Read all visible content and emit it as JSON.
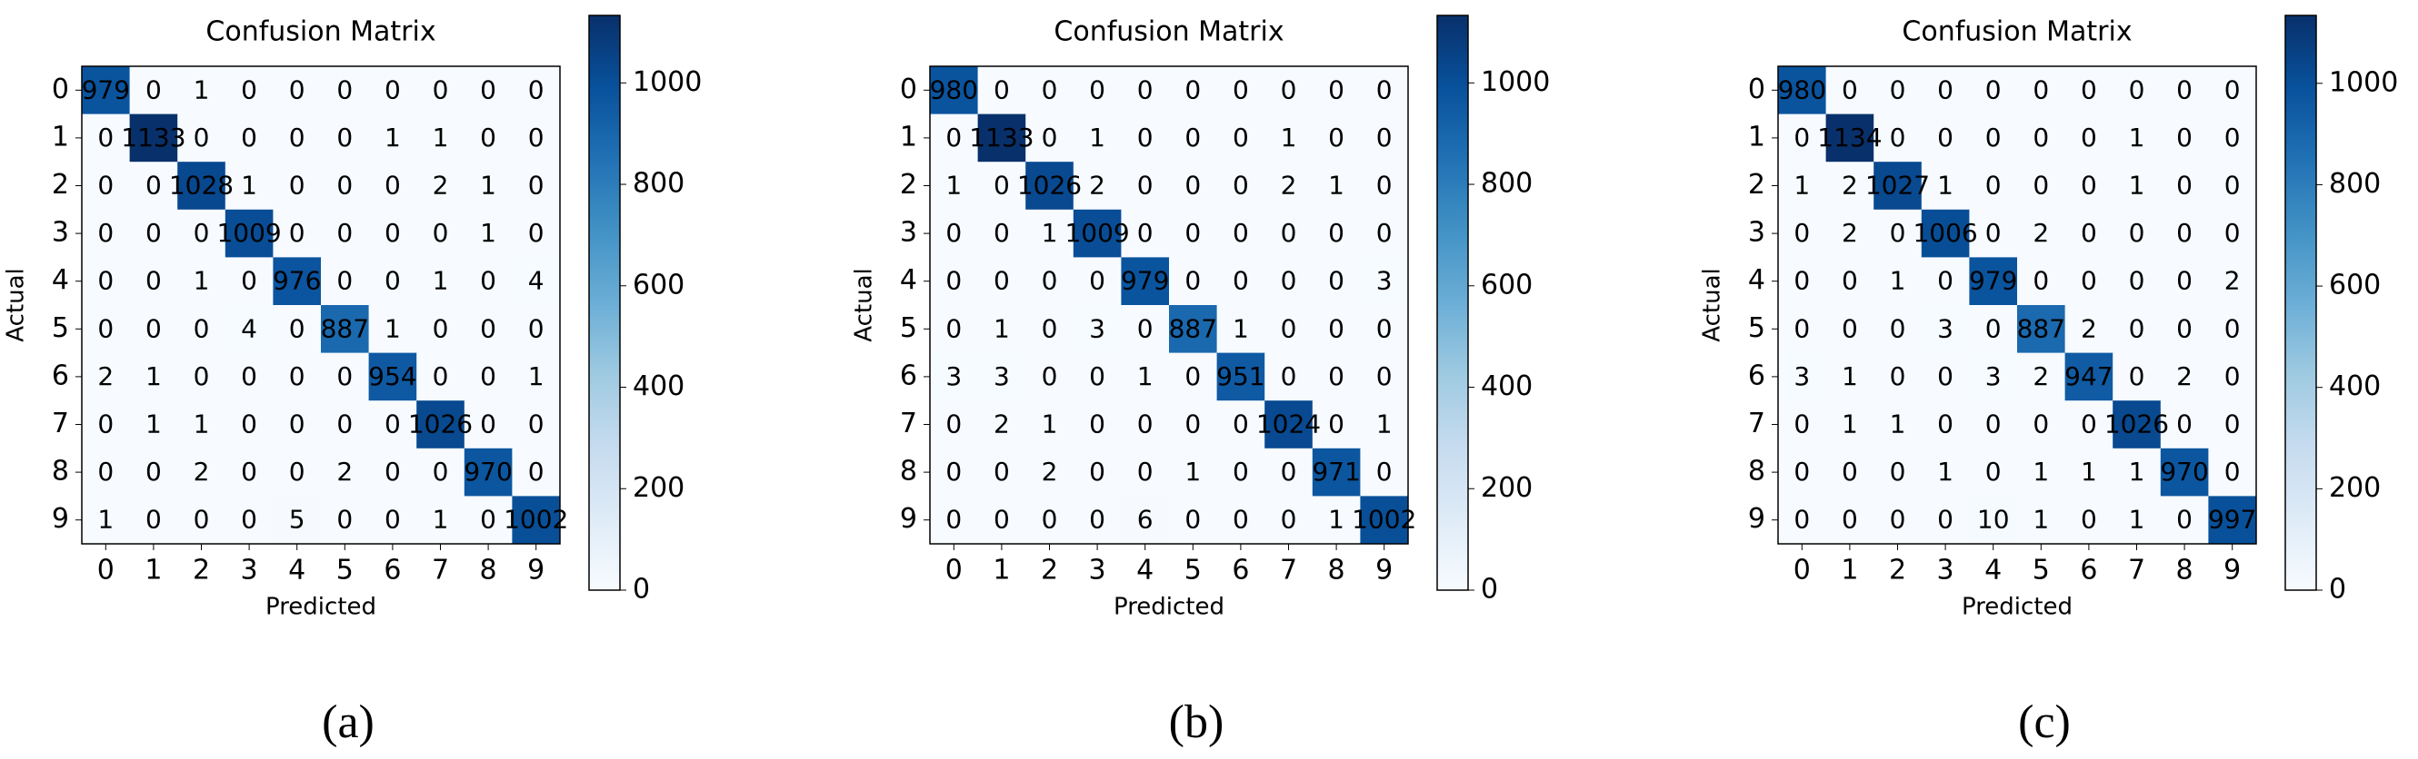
{
  "chart_data": [
    {
      "type": "heatmap",
      "title": "Confusion Matrix",
      "xlabel": "Predicted",
      "ylabel": "Actual",
      "panel_label": "(a)",
      "x_categories": [
        "0",
        "1",
        "2",
        "3",
        "4",
        "5",
        "6",
        "7",
        "8",
        "9"
      ],
      "y_categories": [
        "0",
        "1",
        "2",
        "3",
        "4",
        "5",
        "6",
        "7",
        "8",
        "9"
      ],
      "values": [
        [
          979,
          0,
          1,
          0,
          0,
          0,
          0,
          0,
          0,
          0
        ],
        [
          0,
          1133,
          0,
          0,
          0,
          0,
          1,
          1,
          0,
          0
        ],
        [
          0,
          0,
          1028,
          1,
          0,
          0,
          0,
          2,
          1,
          0
        ],
        [
          0,
          0,
          0,
          1009,
          0,
          0,
          0,
          0,
          1,
          0
        ],
        [
          0,
          0,
          1,
          0,
          976,
          0,
          0,
          1,
          0,
          4
        ],
        [
          0,
          0,
          0,
          4,
          0,
          887,
          1,
          0,
          0,
          0
        ],
        [
          2,
          1,
          0,
          0,
          0,
          0,
          954,
          0,
          0,
          1
        ],
        [
          0,
          1,
          1,
          0,
          0,
          0,
          0,
          1026,
          0,
          0
        ],
        [
          0,
          0,
          2,
          0,
          0,
          2,
          0,
          0,
          970,
          0
        ],
        [
          1,
          0,
          0,
          0,
          5,
          0,
          0,
          1,
          0,
          1002
        ]
      ],
      "colormap": "Blues",
      "colorbar_lim": [
        0,
        1133
      ],
      "colorbar_ticks": [
        0,
        200,
        400,
        600,
        800,
        1000
      ]
    },
    {
      "type": "heatmap",
      "title": "Confusion Matrix",
      "xlabel": "Predicted",
      "ylabel": "Actual",
      "panel_label": "(b)",
      "x_categories": [
        "0",
        "1",
        "2",
        "3",
        "4",
        "5",
        "6",
        "7",
        "8",
        "9"
      ],
      "y_categories": [
        "0",
        "1",
        "2",
        "3",
        "4",
        "5",
        "6",
        "7",
        "8",
        "9"
      ],
      "values": [
        [
          980,
          0,
          0,
          0,
          0,
          0,
          0,
          0,
          0,
          0
        ],
        [
          0,
          1133,
          0,
          1,
          0,
          0,
          0,
          1,
          0,
          0
        ],
        [
          1,
          0,
          1026,
          2,
          0,
          0,
          0,
          2,
          1,
          0
        ],
        [
          0,
          0,
          1,
          1009,
          0,
          0,
          0,
          0,
          0,
          0
        ],
        [
          0,
          0,
          0,
          0,
          979,
          0,
          0,
          0,
          0,
          3
        ],
        [
          0,
          1,
          0,
          3,
          0,
          887,
          1,
          0,
          0,
          0
        ],
        [
          3,
          3,
          0,
          0,
          1,
          0,
          951,
          0,
          0,
          0
        ],
        [
          0,
          2,
          1,
          0,
          0,
          0,
          0,
          1024,
          0,
          1
        ],
        [
          0,
          0,
          2,
          0,
          0,
          1,
          0,
          0,
          971,
          0
        ],
        [
          0,
          0,
          0,
          0,
          6,
          0,
          0,
          0,
          1,
          1002
        ]
      ],
      "colormap": "Blues",
      "colorbar_lim": [
        0,
        1133
      ],
      "colorbar_ticks": [
        0,
        200,
        400,
        600,
        800,
        1000
      ]
    },
    {
      "type": "heatmap",
      "title": "Confusion Matrix",
      "xlabel": "Predicted",
      "ylabel": "Actual",
      "panel_label": "(c)",
      "x_categories": [
        "0",
        "1",
        "2",
        "3",
        "4",
        "5",
        "6",
        "7",
        "8",
        "9"
      ],
      "y_categories": [
        "0",
        "1",
        "2",
        "3",
        "4",
        "5",
        "6",
        "7",
        "8",
        "9"
      ],
      "values": [
        [
          980,
          0,
          0,
          0,
          0,
          0,
          0,
          0,
          0,
          0
        ],
        [
          0,
          1134,
          0,
          0,
          0,
          0,
          0,
          1,
          0,
          0
        ],
        [
          1,
          2,
          1027,
          1,
          0,
          0,
          0,
          1,
          0,
          0
        ],
        [
          0,
          2,
          0,
          1006,
          0,
          2,
          0,
          0,
          0,
          0
        ],
        [
          0,
          0,
          1,
          0,
          979,
          0,
          0,
          0,
          0,
          2
        ],
        [
          0,
          0,
          0,
          3,
          0,
          887,
          2,
          0,
          0,
          0
        ],
        [
          3,
          1,
          0,
          0,
          3,
          2,
          947,
          0,
          2,
          0
        ],
        [
          0,
          1,
          1,
          0,
          0,
          0,
          0,
          1026,
          0,
          0
        ],
        [
          0,
          0,
          0,
          1,
          0,
          1,
          1,
          1,
          970,
          0
        ],
        [
          0,
          0,
          0,
          0,
          10,
          1,
          0,
          1,
          0,
          997
        ]
      ],
      "colormap": "Blues",
      "colorbar_lim": [
        0,
        1134
      ],
      "colorbar_ticks": [
        0,
        200,
        400,
        600,
        800,
        1000
      ]
    }
  ]
}
